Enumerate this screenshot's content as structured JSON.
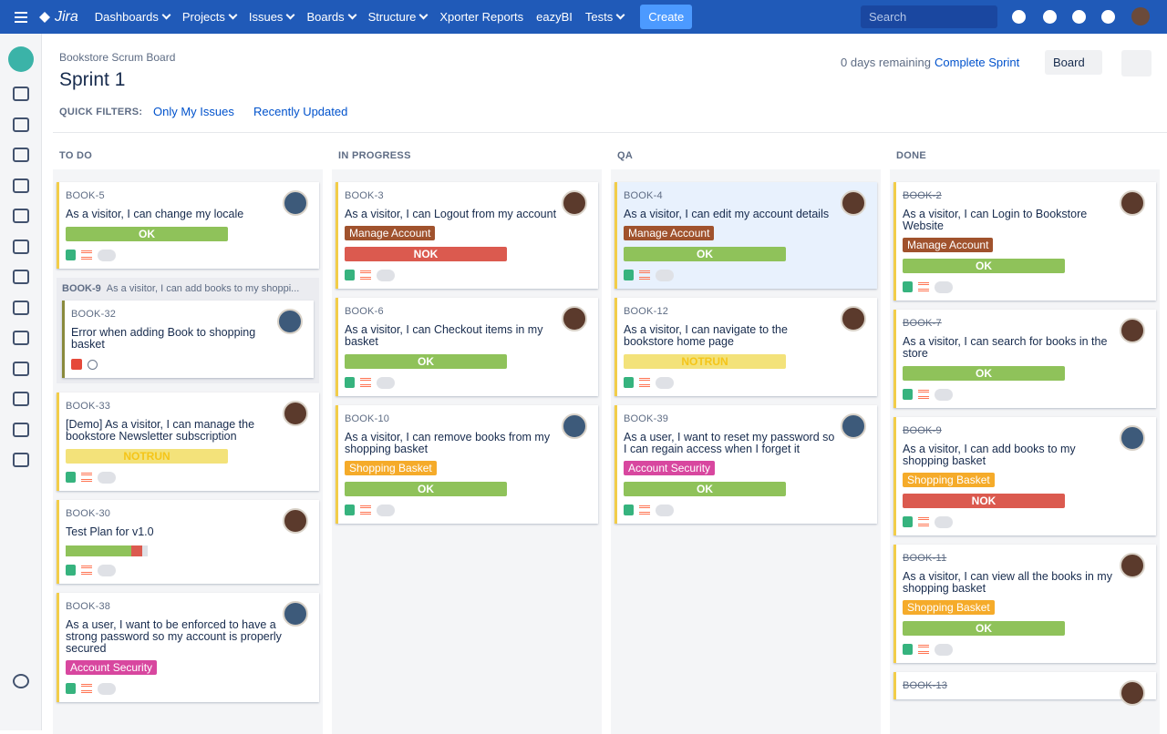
{
  "nav": {
    "logo": "Jira",
    "items": [
      {
        "text": "Dashboards",
        "dropdown": true
      },
      {
        "text": "Projects",
        "dropdown": true
      },
      {
        "text": "Issues",
        "dropdown": true
      },
      {
        "text": "Boards",
        "dropdown": true
      },
      {
        "text": "Structure",
        "dropdown": true
      },
      {
        "text": "Xporter Reports",
        "dropdown": false
      },
      {
        "text": "eazyBI",
        "dropdown": false
      },
      {
        "text": "Tests",
        "dropdown": true
      }
    ],
    "create": "Create",
    "search": "Search"
  },
  "header": {
    "breadcrumb": "Bookstore Scrum Board",
    "title": "Sprint 1",
    "remaining": "0 days remaining",
    "complete": "Complete Sprint",
    "board": "Board",
    "filters_label": "QUICK FILTERS:",
    "filters": [
      "Only My Issues",
      "Recently Updated"
    ]
  },
  "columns": [
    {
      "name": "TO DO",
      "cards": [
        {
          "key": "BOOK-5",
          "summary": "As a visitor, I can change my locale",
          "status": {
            "text": "OK",
            "color": "#8fc25a"
          }
        },
        {
          "key": "BOOK-9",
          "summary": "As a visitor, I can add books to my shoppi...",
          "subtasks": [
            {
              "key": "BOOK-32",
              "summary": "Error when adding Book to shopping basket"
            }
          ]
        },
        {
          "key": "BOOK-33",
          "summary": "[Demo] As a visitor, I can manage the bookstore Newsletter subscription",
          "status": {
            "text": "NOTRUN",
            "color": "#f3e27a"
          }
        },
        {
          "key": "BOOK-30",
          "summary": "Test Plan for v1.0"
        },
        {
          "key": "BOOK-38",
          "summary": "As a user, I want to be enforced to have a strong password so my account is properly secured",
          "label": {
            "text": "Account Security",
            "color": "#d8479f"
          }
        }
      ]
    },
    {
      "name": "IN PROGRESS",
      "cards": [
        {
          "key": "BOOK-3",
          "summary": "As a visitor, I can Logout from my account",
          "label": {
            "text": "Manage Account",
            "color": "#a0522d"
          },
          "status": {
            "text": "NOK",
            "color": "#db5a4f"
          }
        },
        {
          "key": "BOOK-6",
          "summary": "As a visitor, I can Checkout items in my basket",
          "status": {
            "text": "OK",
            "color": "#8fc25a"
          }
        },
        {
          "key": "BOOK-10",
          "summary": "As a visitor, I can remove books from my shopping basket",
          "label": {
            "text": "Shopping Basket",
            "color": "#f5ab2a"
          },
          "status": {
            "text": "OK",
            "color": "#8fc25a"
          }
        }
      ]
    },
    {
      "name": "QA",
      "cards": [
        {
          "key": "BOOK-4",
          "summary": "As a visitor, I can edit my account details",
          "label": {
            "text": "Manage Account",
            "color": "#a0522d"
          },
          "status": {
            "text": "OK",
            "color": "#8fc25a"
          }
        },
        {
          "key": "BOOK-12",
          "summary": "As a visitor, I can navigate to the bookstore home page",
          "status": {
            "text": "NOTRUN",
            "color": "#f3e27a"
          }
        },
        {
          "key": "BOOK-39",
          "summary": "As a user, I want to reset my password so I can regain access when I forget it",
          "label": {
            "text": "Account Security",
            "color": "#d8479f"
          },
          "status": {
            "text": "OK",
            "color": "#8fc25a"
          }
        }
      ]
    },
    {
      "name": "DONE",
      "cards": [
        {
          "key": "BOOK-2",
          "summary": "As a visitor, I can Login to Bookstore Website",
          "label": {
            "text": "Manage Account",
            "color": "#a0522d"
          },
          "status": {
            "text": "OK",
            "color": "#8fc25a"
          }
        },
        {
          "key": "BOOK-7",
          "summary": "As a visitor, I can search for books in the store",
          "status": {
            "text": "OK",
            "color": "#8fc25a"
          }
        },
        {
          "key": "BOOK-9",
          "summary": "As a visitor, I can add books to my shopping basket",
          "label": {
            "text": "Shopping Basket",
            "color": "#f5ab2a"
          },
          "status": {
            "text": "NOK",
            "color": "#db5a4f"
          }
        },
        {
          "key": "BOOK-11",
          "summary": "As a visitor, I can view all the books in my shopping basket",
          "label": {
            "text": "Shopping Basket",
            "color": "#f5ab2a"
          },
          "status": {
            "text": "OK",
            "color": "#8fc25a"
          }
        },
        {
          "key": "BOOK-13",
          "summary": ""
        }
      ]
    }
  ]
}
